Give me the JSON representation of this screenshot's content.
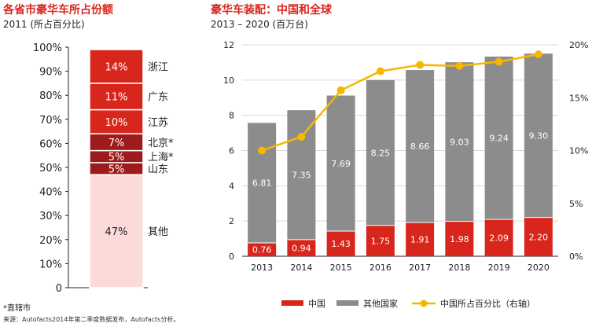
{
  "chart_data": [
    {
      "type": "bar",
      "subtype": "stacked-100",
      "title": "各省市豪华车所占份额",
      "subtitle": "2011 (所占百分比)",
      "yticks": [
        "0",
        "10%",
        "20%",
        "30%",
        "40%",
        "50%",
        "60%",
        "70%",
        "80%",
        "90%",
        "100%"
      ],
      "ylim": [
        0,
        100
      ],
      "segments": [
        {
          "label": "其他",
          "value": 47,
          "value_label": "47%",
          "color": "#fbdada",
          "text_color": "#222222"
        },
        {
          "label": "山东",
          "value": 5,
          "value_label": "5%",
          "color": "#9e1b1b",
          "text_color": "#ffffff"
        },
        {
          "label": "上海*",
          "value": 5,
          "value_label": "5%",
          "color": "#9e1b1b",
          "text_color": "#ffffff"
        },
        {
          "label": "北京*",
          "value": 7,
          "value_label": "7%",
          "color": "#9e1b1b",
          "text_color": "#ffffff"
        },
        {
          "label": "江苏",
          "value": 10,
          "value_label": "10%",
          "color": "#d9261c",
          "text_color": "#ffffff"
        },
        {
          "label": "广东",
          "value": 11,
          "value_label": "11%",
          "color": "#d9261c",
          "text_color": "#ffffff"
        },
        {
          "label": "浙江",
          "value": 14,
          "value_label": "14%",
          "color": "#d9261c",
          "text_color": "#ffffff"
        }
      ],
      "grid": false
    },
    {
      "type": "bar",
      "subtype": "stacked-bar-with-line",
      "title": "豪华车装配：中国和全球",
      "subtitle": "2013 – 2020 (百万台)",
      "categories": [
        "2013",
        "2014",
        "2015",
        "2016",
        "2017",
        "2018",
        "2019",
        "2020"
      ],
      "series": [
        {
          "name": "中国",
          "values": [
            0.76,
            0.94,
            1.43,
            1.75,
            1.91,
            1.98,
            2.09,
            2.2
          ],
          "value_labels": [
            "0.76",
            "0.94",
            "1.43",
            "1.75",
            "1.91",
            "1.98",
            "2.09",
            "2.20"
          ],
          "color": "#d9261c"
        },
        {
          "name": "其他国家",
          "values": [
            6.81,
            7.35,
            7.69,
            8.25,
            8.66,
            9.03,
            9.24,
            9.3
          ],
          "value_labels": [
            "6.81",
            "7.35",
            "7.69",
            "8.25",
            "8.66",
            "9.03",
            "9.24",
            "9.30"
          ],
          "color": "#8c8c8c"
        },
        {
          "name": "中国所占百分比（右轴）",
          "type": "line",
          "axis": "right",
          "values": [
            10.0,
            11.3,
            15.7,
            17.5,
            18.1,
            18.0,
            18.4,
            19.1
          ],
          "color": "#f5b800"
        }
      ],
      "ylim": [
        0,
        12
      ],
      "yticks": [
        "0",
        "2",
        "4",
        "6",
        "8",
        "10",
        "12"
      ],
      "y2lim": [
        0,
        20
      ],
      "y2ticks": [
        "0%",
        "5%",
        "10%",
        "15%",
        "20%"
      ],
      "grid": true,
      "legend_position": "bottom"
    }
  ],
  "footnotes": {
    "note": "*直辖市",
    "source": "来源：Autofacts2014年第二季度数据发布，Autofacts分析。"
  }
}
